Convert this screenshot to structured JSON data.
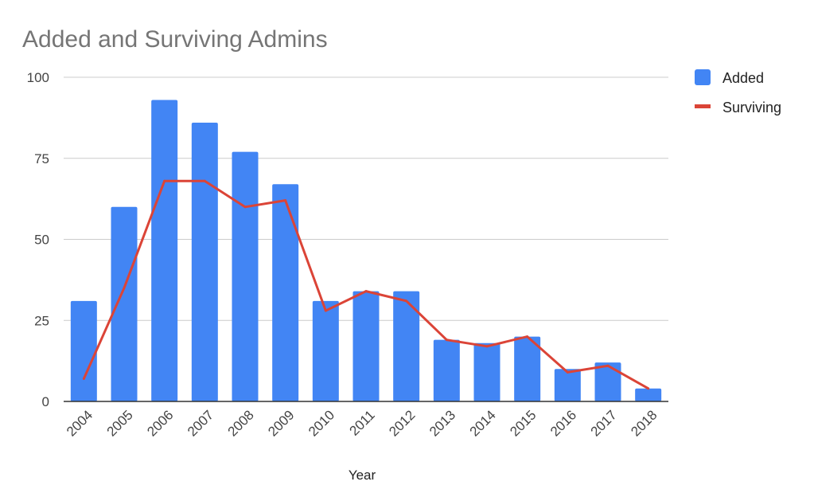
{
  "chart_data": {
    "type": "bar",
    "title": "Added and Surviving Admins",
    "xlabel": "Year",
    "ylabel": "",
    "ylim": [
      0,
      100
    ],
    "yticks": [
      0,
      25,
      50,
      75,
      100
    ],
    "grid": true,
    "legend_position": "top-right",
    "categories": [
      "2004",
      "2005",
      "2006",
      "2007",
      "2008",
      "2009",
      "2010",
      "2011",
      "2012",
      "2013",
      "2014",
      "2015",
      "2016",
      "2017",
      "2018"
    ],
    "series": [
      {
        "name": "Added",
        "type": "bar",
        "color": "#4285f4",
        "values": [
          31,
          60,
          93,
          86,
          77,
          67,
          31,
          34,
          34,
          19,
          18,
          20,
          10,
          12,
          4
        ]
      },
      {
        "name": "Surviving",
        "type": "line",
        "color": "#db4437",
        "values": [
          7,
          35,
          68,
          68,
          60,
          62,
          28,
          34,
          31,
          19,
          17,
          20,
          9,
          11,
          4
        ]
      }
    ]
  }
}
